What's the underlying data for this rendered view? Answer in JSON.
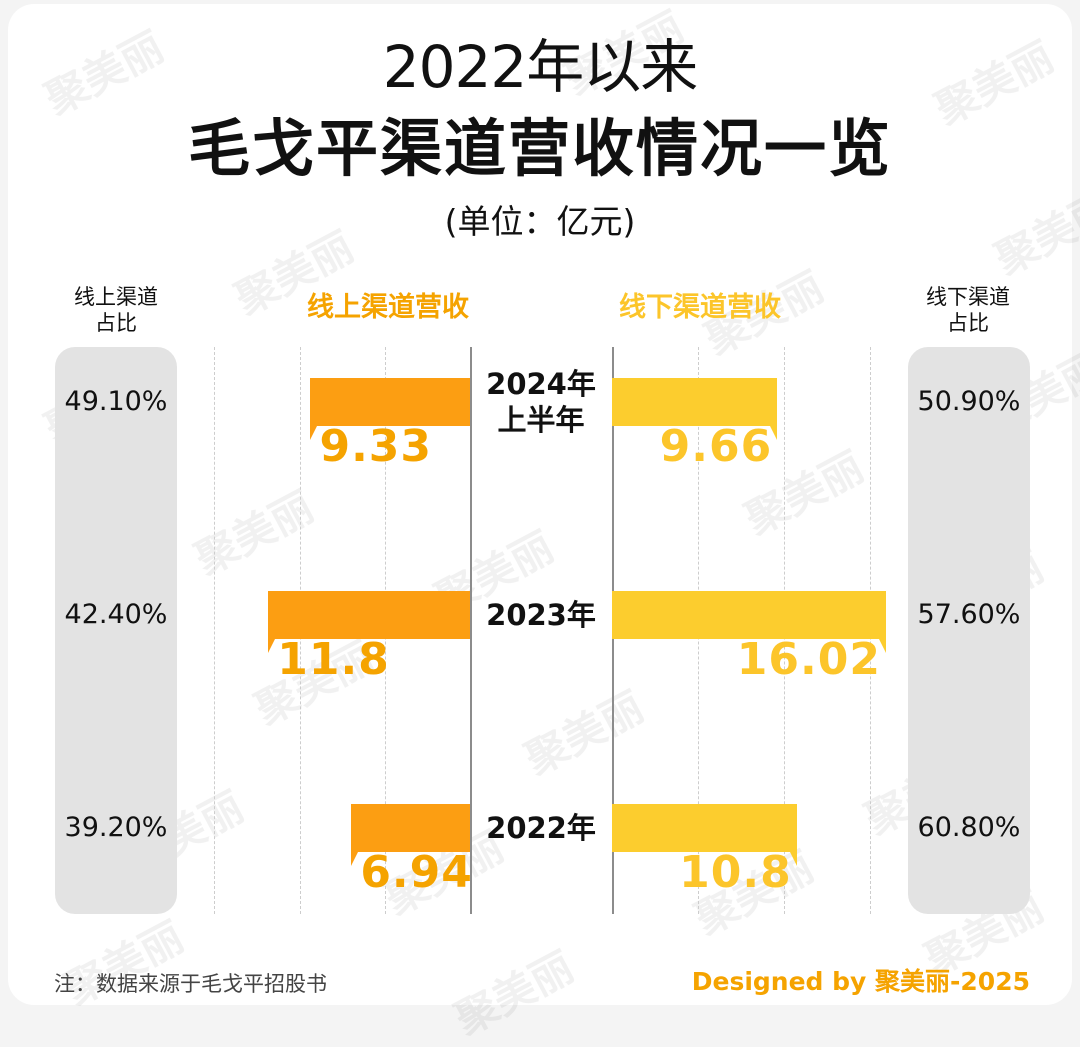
{
  "title_line1": "2022年以来",
  "title_line2": "毛戈平渠道营收情况一览",
  "unit": "(单位：亿元)",
  "online_share_header": "线上渠道\n占比",
  "offline_share_header": "线下渠道\n占比",
  "footnote": "注：数据来源于毛戈平招股书",
  "credit": "Designed by 聚美丽-2025",
  "watermark": "聚美丽",
  "colors": {
    "online": "#fc9e12",
    "offline": "#fccd2e",
    "online_text": "#f5a300",
    "offline_text": "#fcc52a"
  },
  "chart_data": {
    "type": "bar",
    "orientation": "horizontal-diverging",
    "categories": [
      "2024年\n上半年",
      "2023年",
      "2022年"
    ],
    "series": [
      {
        "name": "线上渠道营收",
        "values": [
          9.33,
          11.8,
          6.94
        ],
        "labels": [
          "9.33",
          "11.8",
          "6.94"
        ]
      },
      {
        "name": "线下渠道营收",
        "values": [
          9.66,
          16.02,
          10.8
        ],
        "labels": [
          "9.66",
          "16.02",
          "10.8"
        ]
      }
    ],
    "online_share": [
      "49.10%",
      "42.40%",
      "39.20%"
    ],
    "offline_share": [
      "50.90%",
      "57.60%",
      "60.80%"
    ],
    "title": "毛戈平渠道营收情况一览",
    "xlabel": "",
    "ylabel": "",
    "grid": true
  }
}
